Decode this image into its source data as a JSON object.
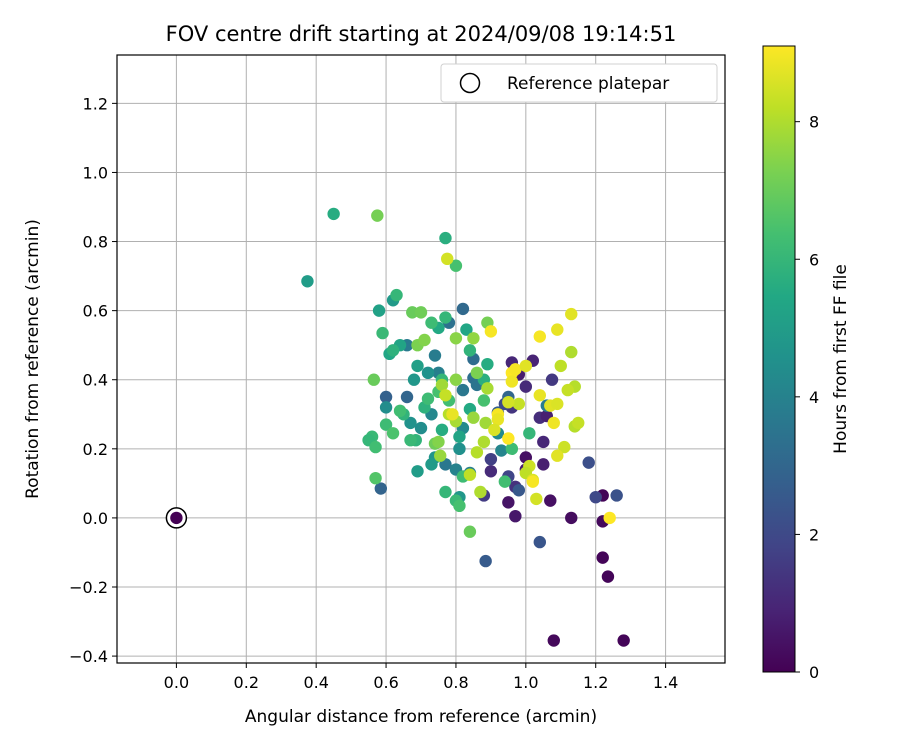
{
  "chart_data": {
    "type": "scatter",
    "title": "FOV centre drift starting at 2024/09/08 19:14:51",
    "xlabel": "Angular distance from reference (arcmin)",
    "ylabel": "Rotation from reference (arcmin)",
    "xlim": [
      -0.17,
      1.57
    ],
    "ylim": [
      -0.42,
      1.34
    ],
    "xticks": [
      "0.0",
      "0.2",
      "0.4",
      "0.6",
      "0.8",
      "1.0",
      "1.2",
      "1.4"
    ],
    "yticks": [
      "−0.4",
      "−0.2",
      "0.0",
      "0.2",
      "0.4",
      "0.6",
      "0.8",
      "1.0",
      "1.2"
    ],
    "grid": true,
    "legend": {
      "position": "top-right",
      "entries": [
        "Reference platepar"
      ]
    },
    "colorbar": {
      "label": "Hours from first FF file",
      "range": [
        0,
        9.1
      ],
      "ticks": [
        "0",
        "2",
        "4",
        "6",
        "8"
      ],
      "colormap": "viridis"
    },
    "reference_point": {
      "x": 0.0,
      "y": 0.0
    },
    "points": [
      {
        "x": 1.22,
        "y": 0.065,
        "h": 0.1
      },
      {
        "x": 1.22,
        "y": -0.01,
        "h": 0.2
      },
      {
        "x": 1.22,
        "y": -0.115,
        "h": 0.1
      },
      {
        "x": 1.235,
        "y": -0.17,
        "h": 0.1
      },
      {
        "x": 1.08,
        "y": -0.355,
        "h": 0.2
      },
      {
        "x": 1.28,
        "y": -0.355,
        "h": 0.1
      },
      {
        "x": 1.13,
        "y": 0.0,
        "h": 0.3
      },
      {
        "x": 1.07,
        "y": 0.05,
        "h": 0.4
      },
      {
        "x": 0.97,
        "y": 0.005,
        "h": 0.6
      },
      {
        "x": 0.95,
        "y": 0.045,
        "h": 0.5
      },
      {
        "x": 1.05,
        "y": 0.155,
        "h": 0.8
      },
      {
        "x": 1.0,
        "y": 0.175,
        "h": 0.4
      },
      {
        "x": 1.0,
        "y": 0.14,
        "h": 0.7
      },
      {
        "x": 1.05,
        "y": 0.22,
        "h": 1.0
      },
      {
        "x": 1.02,
        "y": 0.455,
        "h": 0.9
      },
      {
        "x": 0.96,
        "y": 0.45,
        "h": 1.0
      },
      {
        "x": 1.04,
        "y": 0.29,
        "h": 1.2
      },
      {
        "x": 1.0,
        "y": 0.38,
        "h": 1.1
      },
      {
        "x": 0.98,
        "y": 0.415,
        "h": 0.7
      },
      {
        "x": 1.06,
        "y": 0.295,
        "h": 0.8
      },
      {
        "x": 1.075,
        "y": 0.4,
        "h": 1.5
      },
      {
        "x": 0.97,
        "y": 0.09,
        "h": 1.3
      },
      {
        "x": 0.9,
        "y": 0.135,
        "h": 1.1
      },
      {
        "x": 0.88,
        "y": 0.065,
        "h": 1.6
      },
      {
        "x": 0.96,
        "y": 0.32,
        "h": 1.4
      },
      {
        "x": 0.9,
        "y": 0.17,
        "h": 1.7
      },
      {
        "x": 0.95,
        "y": 0.12,
        "h": 1.9
      },
      {
        "x": 1.2,
        "y": 0.06,
        "h": 2.0
      },
      {
        "x": 1.26,
        "y": 0.065,
        "h": 2.3
      },
      {
        "x": 1.18,
        "y": 0.16,
        "h": 2.2
      },
      {
        "x": 1.04,
        "y": -0.07,
        "h": 2.4
      },
      {
        "x": 0.885,
        "y": -0.125,
        "h": 2.6
      },
      {
        "x": 0.98,
        "y": 0.08,
        "h": 2.5
      },
      {
        "x": 0.92,
        "y": 0.305,
        "h": 2.7
      },
      {
        "x": 0.94,
        "y": 0.33,
        "h": 2.1
      },
      {
        "x": 0.95,
        "y": 0.35,
        "h": 3.0
      },
      {
        "x": 0.82,
        "y": 0.605,
        "h": 3.1
      },
      {
        "x": 0.78,
        "y": 0.565,
        "h": 3.4
      },
      {
        "x": 0.85,
        "y": 0.46,
        "h": 3.2
      },
      {
        "x": 0.85,
        "y": 0.405,
        "h": 3.3
      },
      {
        "x": 0.82,
        "y": 0.37,
        "h": 3.6
      },
      {
        "x": 0.86,
        "y": 0.385,
        "h": 3.5
      },
      {
        "x": 0.74,
        "y": 0.47,
        "h": 3.8
      },
      {
        "x": 0.75,
        "y": 0.42,
        "h": 3.9
      },
      {
        "x": 0.66,
        "y": 0.5,
        "h": 3.7
      },
      {
        "x": 0.6,
        "y": 0.35,
        "h": 2.8
      },
      {
        "x": 0.66,
        "y": 0.35,
        "h": 3.0
      },
      {
        "x": 0.585,
        "y": 0.085,
        "h": 2.9
      },
      {
        "x": 0.77,
        "y": 0.155,
        "h": 3.6
      },
      {
        "x": 0.8,
        "y": 0.14,
        "h": 4.0
      },
      {
        "x": 0.84,
        "y": 0.13,
        "h": 3.9
      },
      {
        "x": 0.93,
        "y": 0.195,
        "h": 4.1
      },
      {
        "x": 0.92,
        "y": 0.245,
        "h": 4.3
      },
      {
        "x": 1.06,
        "y": 0.325,
        "h": 3.8
      },
      {
        "x": 0.73,
        "y": 0.3,
        "h": 4.2
      },
      {
        "x": 0.7,
        "y": 0.26,
        "h": 4.4
      },
      {
        "x": 0.67,
        "y": 0.275,
        "h": 4.6
      },
      {
        "x": 0.82,
        "y": 0.26,
        "h": 4.3
      },
      {
        "x": 0.81,
        "y": 0.2,
        "h": 4.5
      },
      {
        "x": 0.74,
        "y": 0.175,
        "h": 4.7
      },
      {
        "x": 0.73,
        "y": 0.155,
        "h": 4.9
      },
      {
        "x": 0.81,
        "y": 0.06,
        "h": 4.8
      },
      {
        "x": 0.69,
        "y": 0.135,
        "h": 5.0
      },
      {
        "x": 0.6,
        "y": 0.32,
        "h": 4.4
      },
      {
        "x": 0.68,
        "y": 0.4,
        "h": 4.8
      },
      {
        "x": 0.72,
        "y": 0.42,
        "h": 4.6
      },
      {
        "x": 0.69,
        "y": 0.44,
        "h": 5.1
      },
      {
        "x": 0.64,
        "y": 0.5,
        "h": 5.3
      },
      {
        "x": 0.62,
        "y": 0.63,
        "h": 4.9
      },
      {
        "x": 0.58,
        "y": 0.6,
        "h": 5.2
      },
      {
        "x": 0.75,
        "y": 0.55,
        "h": 5.5
      },
      {
        "x": 0.77,
        "y": 0.81,
        "h": 5.7
      },
      {
        "x": 0.45,
        "y": 0.88,
        "h": 5.6
      },
      {
        "x": 0.375,
        "y": 0.685,
        "h": 5.0
      },
      {
        "x": 0.63,
        "y": 0.645,
        "h": 6.0
      },
      {
        "x": 0.59,
        "y": 0.535,
        "h": 6.1
      },
      {
        "x": 0.61,
        "y": 0.475,
        "h": 5.4
      },
      {
        "x": 0.62,
        "y": 0.485,
        "h": 5.8
      },
      {
        "x": 0.73,
        "y": 0.565,
        "h": 6.2
      },
      {
        "x": 0.77,
        "y": 0.58,
        "h": 6.0
      },
      {
        "x": 0.8,
        "y": 0.73,
        "h": 6.4
      },
      {
        "x": 0.84,
        "y": 0.485,
        "h": 5.9
      },
      {
        "x": 0.83,
        "y": 0.545,
        "h": 5.4
      },
      {
        "x": 0.89,
        "y": 0.445,
        "h": 5.6
      },
      {
        "x": 0.88,
        "y": 0.4,
        "h": 5.7
      },
      {
        "x": 0.84,
        "y": 0.315,
        "h": 5.5
      },
      {
        "x": 0.81,
        "y": 0.235,
        "h": 5.3
      },
      {
        "x": 0.76,
        "y": 0.255,
        "h": 5.6
      },
      {
        "x": 0.71,
        "y": 0.32,
        "h": 5.8
      },
      {
        "x": 0.65,
        "y": 0.3,
        "h": 5.9
      },
      {
        "x": 0.64,
        "y": 0.31,
        "h": 6.3
      },
      {
        "x": 0.6,
        "y": 0.27,
        "h": 6.2
      },
      {
        "x": 0.62,
        "y": 0.245,
        "h": 6.5
      },
      {
        "x": 0.56,
        "y": 0.235,
        "h": 6.1
      },
      {
        "x": 0.55,
        "y": 0.225,
        "h": 6.0
      },
      {
        "x": 0.57,
        "y": 0.205,
        "h": 6.3
      },
      {
        "x": 0.57,
        "y": 0.115,
        "h": 6.6
      },
      {
        "x": 0.685,
        "y": 0.225,
        "h": 5.9
      },
      {
        "x": 0.67,
        "y": 0.225,
        "h": 6.1
      },
      {
        "x": 0.72,
        "y": 0.345,
        "h": 6.2
      },
      {
        "x": 0.75,
        "y": 0.365,
        "h": 6.4
      },
      {
        "x": 0.78,
        "y": 0.34,
        "h": 6.3
      },
      {
        "x": 0.76,
        "y": 0.4,
        "h": 6.0
      },
      {
        "x": 0.88,
        "y": 0.34,
        "h": 6.4
      },
      {
        "x": 0.82,
        "y": 0.12,
        "h": 6.2
      },
      {
        "x": 0.77,
        "y": 0.075,
        "h": 6.0
      },
      {
        "x": 0.8,
        "y": 0.05,
        "h": 6.1
      },
      {
        "x": 0.81,
        "y": 0.035,
        "h": 6.4
      },
      {
        "x": 0.94,
        "y": 0.105,
        "h": 6.3
      },
      {
        "x": 0.96,
        "y": 0.2,
        "h": 6.2
      },
      {
        "x": 1.01,
        "y": 0.245,
        "h": 6.0
      },
      {
        "x": 0.565,
        "y": 0.4,
        "h": 7.0
      },
      {
        "x": 0.575,
        "y": 0.875,
        "h": 7.2
      },
      {
        "x": 0.675,
        "y": 0.595,
        "h": 7.0
      },
      {
        "x": 0.7,
        "y": 0.595,
        "h": 7.1
      },
      {
        "x": 0.69,
        "y": 0.5,
        "h": 7.3
      },
      {
        "x": 0.71,
        "y": 0.515,
        "h": 7.4
      },
      {
        "x": 0.8,
        "y": 0.52,
        "h": 7.5
      },
      {
        "x": 0.89,
        "y": 0.565,
        "h": 7.2
      },
      {
        "x": 0.84,
        "y": -0.04,
        "h": 7.0
      },
      {
        "x": 0.74,
        "y": 0.215,
        "h": 7.1
      },
      {
        "x": 0.75,
        "y": 0.22,
        "h": 7.4
      },
      {
        "x": 0.85,
        "y": 0.52,
        "h": 7.6
      },
      {
        "x": 0.86,
        "y": 0.42,
        "h": 7.3
      },
      {
        "x": 0.8,
        "y": 0.4,
        "h": 7.5
      },
      {
        "x": 0.76,
        "y": 0.385,
        "h": 7.8
      },
      {
        "x": 0.755,
        "y": 0.18,
        "h": 7.7
      },
      {
        "x": 0.8,
        "y": 0.28,
        "h": 7.9
      },
      {
        "x": 0.85,
        "y": 0.29,
        "h": 7.7
      },
      {
        "x": 0.89,
        "y": 0.375,
        "h": 7.9
      },
      {
        "x": 0.885,
        "y": 0.275,
        "h": 7.8
      },
      {
        "x": 0.86,
        "y": 0.19,
        "h": 8.1
      },
      {
        "x": 0.88,
        "y": 0.22,
        "h": 8.0
      },
      {
        "x": 0.84,
        "y": 0.125,
        "h": 8.2
      },
      {
        "x": 0.77,
        "y": 0.355,
        "h": 8.3
      },
      {
        "x": 0.78,
        "y": 0.3,
        "h": 8.1
      },
      {
        "x": 0.775,
        "y": 0.75,
        "h": 8.5
      },
      {
        "x": 0.87,
        "y": 0.075,
        "h": 8.0
      },
      {
        "x": 1.13,
        "y": 0.48,
        "h": 8.0
      },
      {
        "x": 1.14,
        "y": 0.38,
        "h": 8.1
      },
      {
        "x": 1.12,
        "y": 0.37,
        "h": 8.3
      },
      {
        "x": 1.1,
        "y": 0.44,
        "h": 8.2
      },
      {
        "x": 1.14,
        "y": 0.265,
        "h": 8.1
      },
      {
        "x": 1.15,
        "y": 0.275,
        "h": 8.3
      },
      {
        "x": 1.11,
        "y": 0.205,
        "h": 8.4
      },
      {
        "x": 0.98,
        "y": 0.33,
        "h": 8.3
      },
      {
        "x": 0.95,
        "y": 0.335,
        "h": 8.5
      },
      {
        "x": 1.01,
        "y": 0.15,
        "h": 8.4
      },
      {
        "x": 1.0,
        "y": 0.13,
        "h": 8.2
      },
      {
        "x": 1.02,
        "y": 0.11,
        "h": 8.6
      },
      {
        "x": 1.04,
        "y": 0.525,
        "h": 9.0
      },
      {
        "x": 1.09,
        "y": 0.545,
        "h": 8.8
      },
      {
        "x": 1.13,
        "y": 0.59,
        "h": 8.7
      },
      {
        "x": 0.9,
        "y": 0.54,
        "h": 9.0
      },
      {
        "x": 0.96,
        "y": 0.42,
        "h": 9.1
      },
      {
        "x": 0.97,
        "y": 0.43,
        "h": 9.0
      },
      {
        "x": 0.96,
        "y": 0.395,
        "h": 8.9
      },
      {
        "x": 1.0,
        "y": 0.44,
        "h": 8.7
      },
      {
        "x": 1.04,
        "y": 0.355,
        "h": 8.8
      },
      {
        "x": 1.07,
        "y": 0.325,
        "h": 8.7
      },
      {
        "x": 1.09,
        "y": 0.33,
        "h": 8.6
      },
      {
        "x": 1.08,
        "y": 0.275,
        "h": 8.9
      },
      {
        "x": 1.09,
        "y": 0.18,
        "h": 8.7
      },
      {
        "x": 0.92,
        "y": 0.3,
        "h": 9.0
      },
      {
        "x": 0.92,
        "y": 0.285,
        "h": 8.8
      },
      {
        "x": 0.95,
        "y": 0.23,
        "h": 9.1
      },
      {
        "x": 1.02,
        "y": 0.105,
        "h": 9.0
      },
      {
        "x": 1.03,
        "y": 0.055,
        "h": 8.5
      },
      {
        "x": 1.24,
        "y": 0.0,
        "h": 9.1
      },
      {
        "x": 0.79,
        "y": 0.3,
        "h": 8.8
      },
      {
        "x": 0.91,
        "y": 0.255,
        "h": 8.6
      }
    ]
  }
}
